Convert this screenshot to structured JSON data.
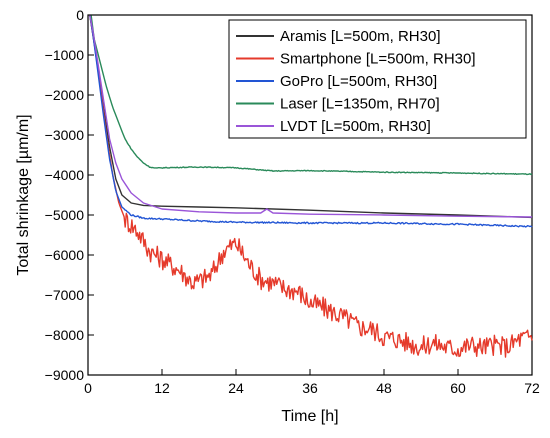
{
  "chart_data": {
    "type": "line",
    "xlabel": "Time [h]",
    "ylabel": "Total shrinkage [µm/m]",
    "xlim": [
      0,
      72
    ],
    "ylim": [
      -9000,
      0
    ],
    "xticks": [
      0,
      12,
      24,
      36,
      48,
      60,
      72
    ],
    "yticks": [
      0,
      -1000,
      -2000,
      -3000,
      -4000,
      -5000,
      -6000,
      -7000,
      -8000,
      -9000
    ],
    "legend_position": "top-right",
    "grid": false,
    "series": [
      {
        "name": "Aramis [L=500m, RH30]",
        "color": "#333333",
        "noise": 0,
        "points": [
          [
            0.3,
            0
          ],
          [
            0.8,
            -500
          ],
          [
            1.5,
            -1200
          ],
          [
            2.5,
            -2300
          ],
          [
            3.5,
            -3300
          ],
          [
            4.5,
            -4100
          ],
          [
            5.5,
            -4500
          ],
          [
            7,
            -4700
          ],
          [
            9,
            -4760
          ],
          [
            12,
            -4780
          ],
          [
            18,
            -4800
          ],
          [
            24,
            -4820
          ],
          [
            36,
            -4880
          ],
          [
            48,
            -4950
          ],
          [
            60,
            -5000
          ],
          [
            72,
            -5060
          ]
        ]
      },
      {
        "name": "Smartphone [L=500m, RH30]",
        "color": "#e53a2b",
        "noise": 260,
        "points": [
          [
            0.3,
            0
          ],
          [
            1,
            -700
          ],
          [
            2,
            -1800
          ],
          [
            3,
            -3000
          ],
          [
            4,
            -4000
          ],
          [
            5,
            -4700
          ],
          [
            6,
            -5100
          ],
          [
            8,
            -5400
          ],
          [
            10,
            -5900
          ],
          [
            12,
            -6100
          ],
          [
            15,
            -6400
          ],
          [
            17,
            -6700
          ],
          [
            18,
            -6650
          ],
          [
            20,
            -6500
          ],
          [
            22,
            -5900
          ],
          [
            24,
            -5700
          ],
          [
            26,
            -6200
          ],
          [
            28,
            -6600
          ],
          [
            30,
            -6700
          ],
          [
            32,
            -6850
          ],
          [
            34,
            -6900
          ],
          [
            36,
            -7200
          ],
          [
            38,
            -7300
          ],
          [
            40,
            -7450
          ],
          [
            42,
            -7600
          ],
          [
            44,
            -7800
          ],
          [
            46,
            -7850
          ],
          [
            48,
            -8050
          ],
          [
            50,
            -8100
          ],
          [
            52,
            -8200
          ],
          [
            54,
            -8300
          ],
          [
            56,
            -8200
          ],
          [
            58,
            -8300
          ],
          [
            60,
            -8350
          ],
          [
            62,
            -8250
          ],
          [
            64,
            -8300
          ],
          [
            66,
            -8250
          ],
          [
            68,
            -8300
          ],
          [
            70,
            -8100
          ],
          [
            72,
            -8050
          ]
        ]
      },
      {
        "name": "GoPro [L=500m, RH30]",
        "color": "#2255d4",
        "noise": 18,
        "points": [
          [
            0.3,
            0
          ],
          [
            0.8,
            -500
          ],
          [
            1.5,
            -1300
          ],
          [
            2.5,
            -2500
          ],
          [
            3.5,
            -3600
          ],
          [
            4.5,
            -4400
          ],
          [
            5.5,
            -4800
          ],
          [
            7,
            -5000
          ],
          [
            9,
            -5080
          ],
          [
            12,
            -5100
          ],
          [
            18,
            -5150
          ],
          [
            24,
            -5180
          ],
          [
            36,
            -5200
          ],
          [
            48,
            -5200
          ],
          [
            60,
            -5230
          ],
          [
            72,
            -5290
          ]
        ]
      },
      {
        "name": "Laser [L=1350m, RH70]",
        "color": "#2a8a5a",
        "noise": 10,
        "points": [
          [
            0.5,
            0
          ],
          [
            1,
            -600
          ],
          [
            2,
            -1200
          ],
          [
            3,
            -1800
          ],
          [
            4,
            -2300
          ],
          [
            5,
            -2700
          ],
          [
            6,
            -3100
          ],
          [
            7,
            -3350
          ],
          [
            8,
            -3550
          ],
          [
            9,
            -3700
          ],
          [
            10,
            -3800
          ],
          [
            11,
            -3830
          ],
          [
            12,
            -3820
          ],
          [
            18,
            -3800
          ],
          [
            24,
            -3820
          ],
          [
            30,
            -3900
          ],
          [
            36,
            -3890
          ],
          [
            48,
            -3930
          ],
          [
            60,
            -3950
          ],
          [
            72,
            -3980
          ]
        ]
      },
      {
        "name": "LVDT [L=500m, RH30]",
        "color": "#9a55d8",
        "noise": 0,
        "points": [
          [
            0.3,
            0
          ],
          [
            0.8,
            -400
          ],
          [
            1.5,
            -1100
          ],
          [
            2.5,
            -2100
          ],
          [
            3.5,
            -3100
          ],
          [
            4.5,
            -3700
          ],
          [
            5.5,
            -4100
          ],
          [
            7,
            -4450
          ],
          [
            9,
            -4700
          ],
          [
            12,
            -4850
          ],
          [
            18,
            -4920
          ],
          [
            24,
            -4950
          ],
          [
            28,
            -4950
          ],
          [
            29,
            -4850
          ],
          [
            30,
            -4950
          ],
          [
            36,
            -4980
          ],
          [
            48,
            -5000
          ],
          [
            60,
            -5030
          ],
          [
            72,
            -5050
          ]
        ]
      }
    ]
  }
}
